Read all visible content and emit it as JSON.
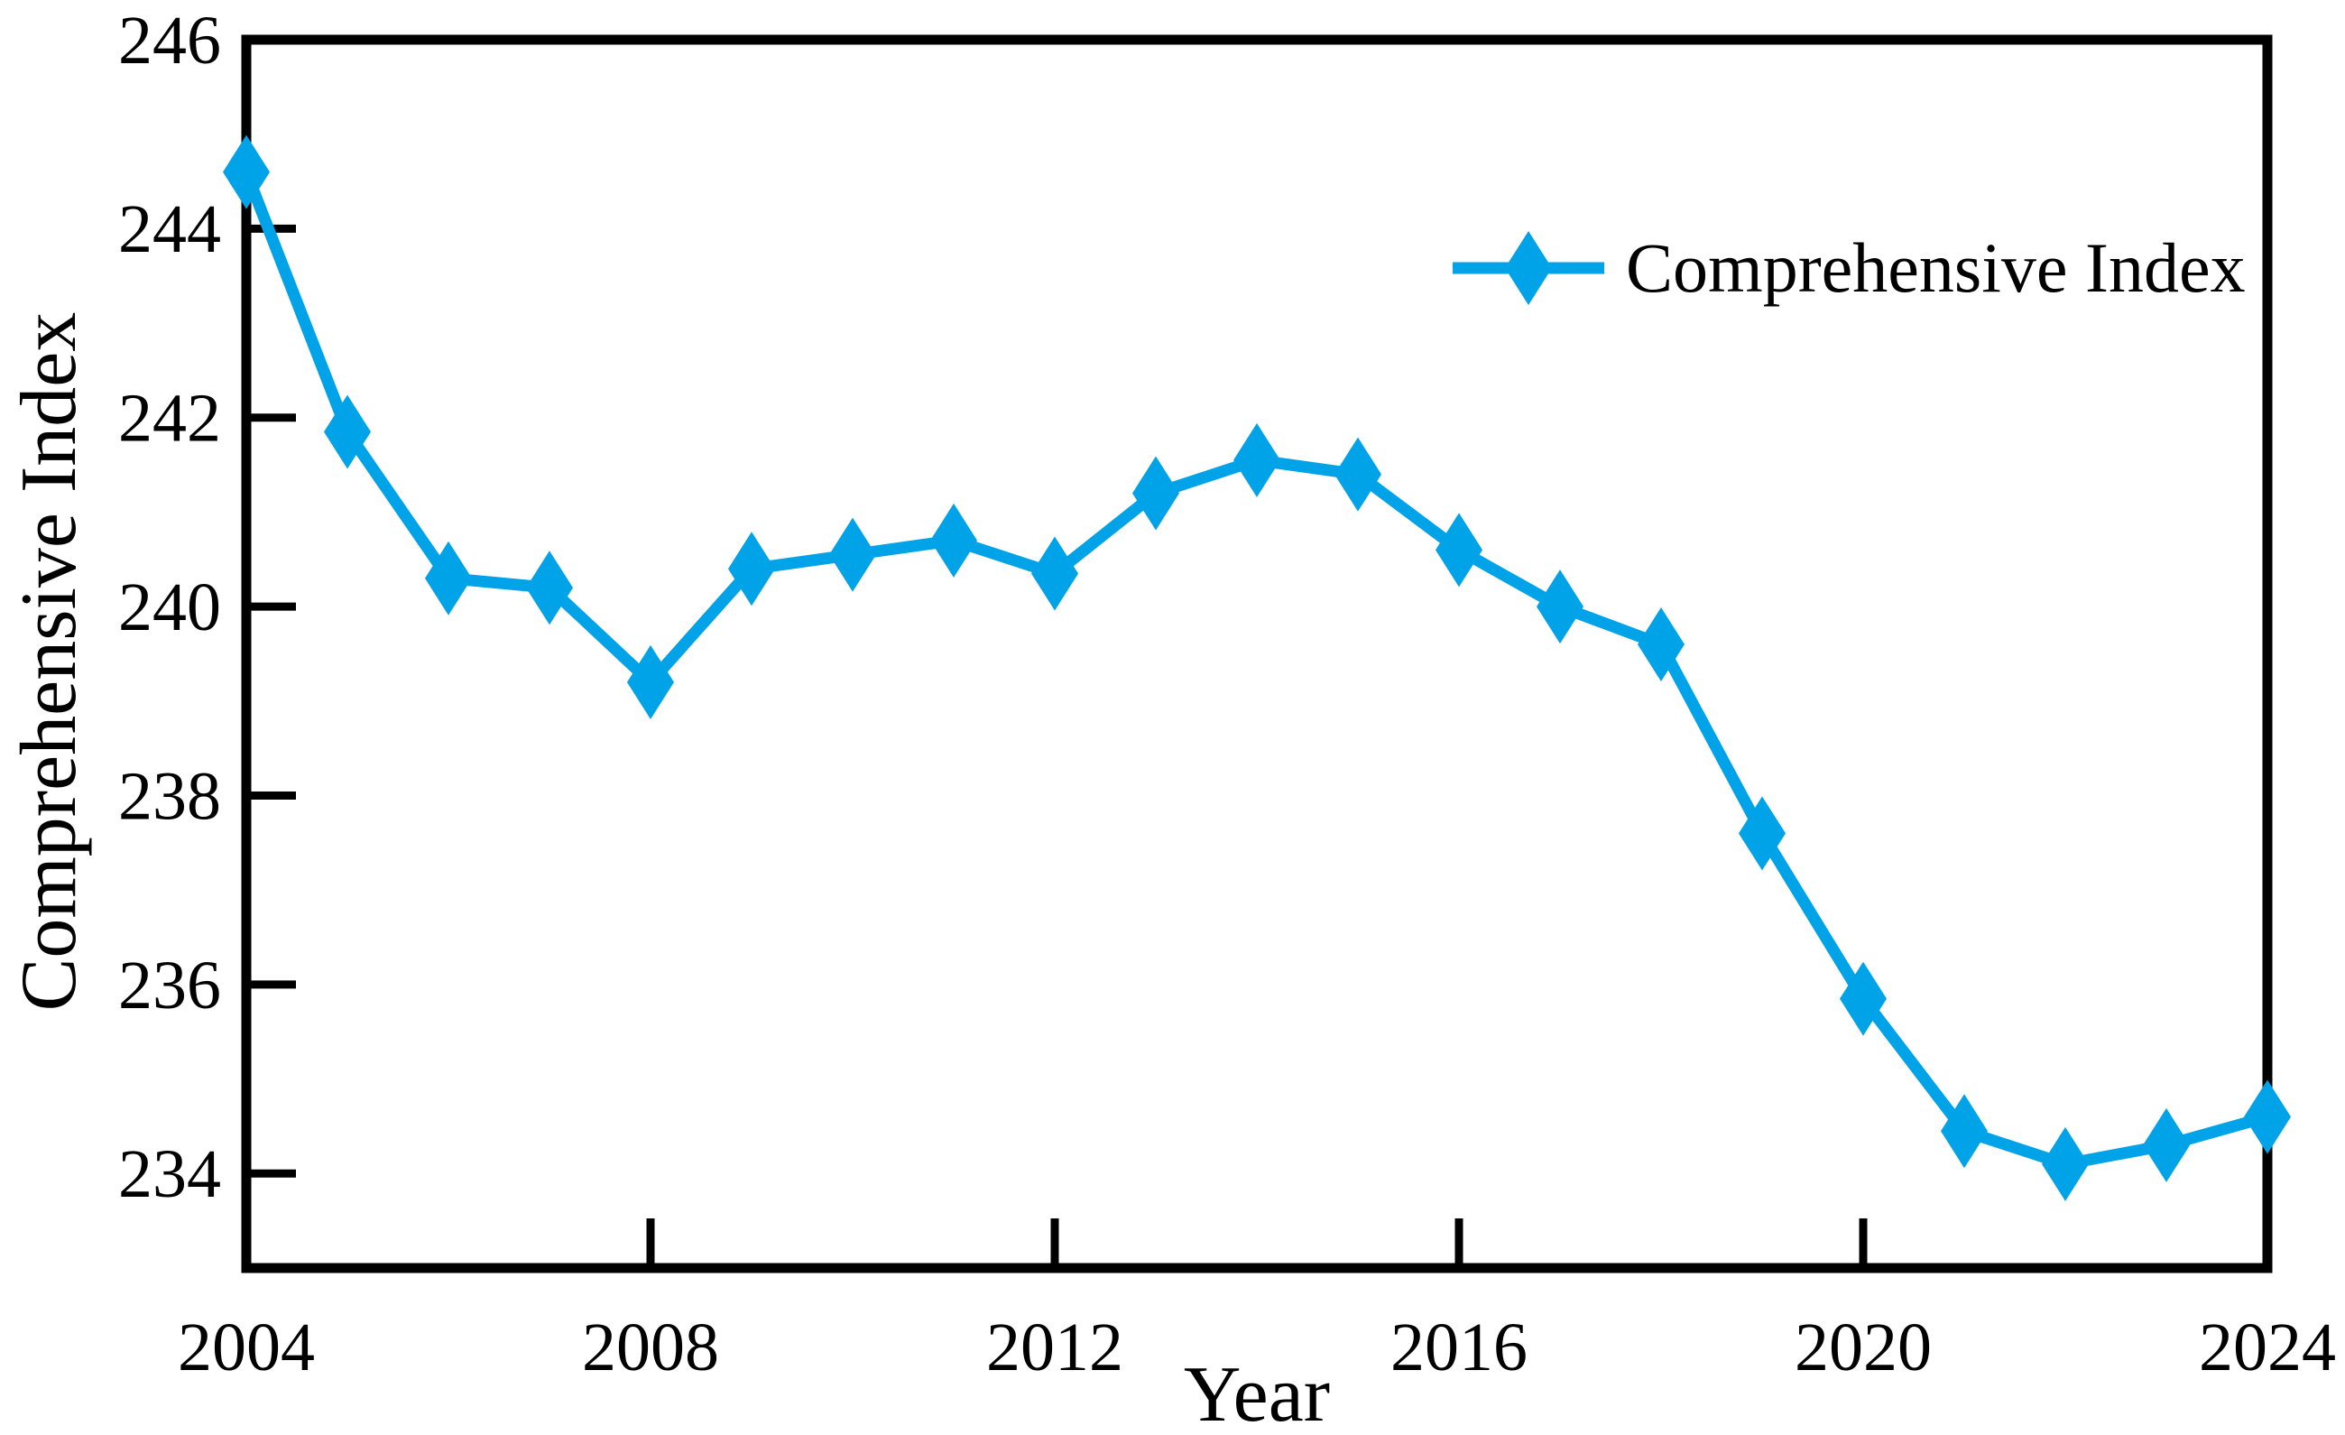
{
  "chart_data": {
    "type": "line",
    "title": "",
    "xlabel": "Year",
    "ylabel": "Comprehensive Index",
    "x": [
      2004,
      2005,
      2006,
      2007,
      2008,
      2009,
      2010,
      2011,
      2012,
      2013,
      2014,
      2015,
      2016,
      2017,
      2018,
      2019,
      2020,
      2021,
      2022,
      2023,
      2024
    ],
    "series": [
      {
        "name": "Comprehensive Index",
        "values": [
          244.6,
          241.85,
          240.3,
          240.2,
          239.2,
          240.4,
          240.55,
          240.7,
          240.35,
          241.2,
          241.55,
          241.4,
          240.6,
          240.0,
          239.6,
          237.6,
          235.85,
          234.45,
          234.1,
          234.3,
          234.6
        ]
      }
    ],
    "xlim": [
      2004,
      2024
    ],
    "ylim": [
      233.0,
      246.0
    ],
    "xticks": [
      2004,
      2008,
      2012,
      2016,
      2020,
      2024
    ],
    "yticks": [
      234,
      236,
      238,
      240,
      242,
      244,
      246
    ],
    "xtick_labels": [
      "2004",
      "2008",
      "2012",
      "2016",
      "2020",
      "2024"
    ],
    "ytick_labels": [
      "234",
      "236",
      "238",
      "240",
      "242",
      "244",
      "246"
    ],
    "grid": false,
    "marker": "thin-diamond",
    "legend_position": "upper-right-inside",
    "colors": {
      "line": "#00A2E8",
      "axis": "#000000",
      "text": "#000000",
      "background": "#FFFFFF"
    }
  }
}
